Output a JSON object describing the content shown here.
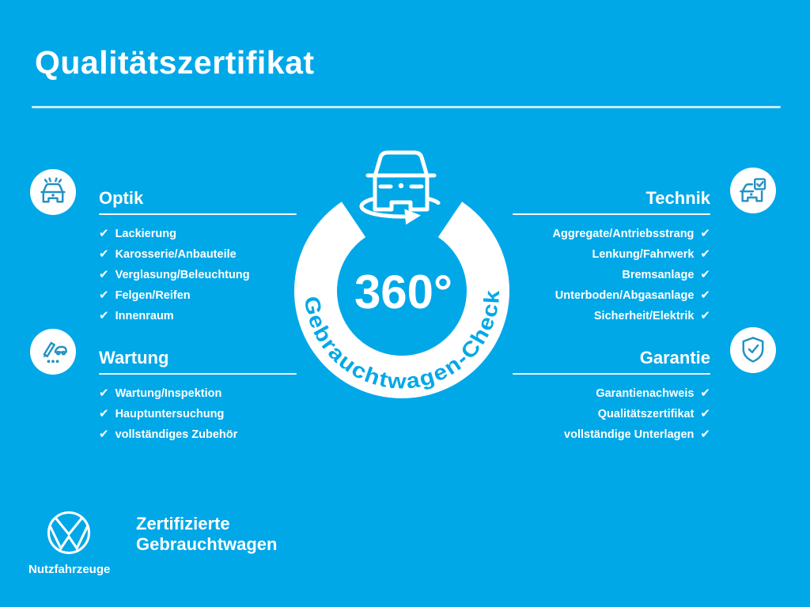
{
  "page": {
    "title": "Qualitätszertifikat"
  },
  "colors": {
    "background": "#00a8e8",
    "text": "#ffffff",
    "icon_stroke": "#2491c3"
  },
  "checkmark": "✔",
  "sections": [
    {
      "id": "optik",
      "title": "Optik",
      "icon": "car-shine-icon",
      "side": "left",
      "items": [
        "Lackierung",
        "Karosserie/Anbauteile",
        "Verglasung/Beleuchtung",
        "Felgen/Reifen",
        "Innenraum"
      ]
    },
    {
      "id": "wartung",
      "title": "Wartung",
      "icon": "pen-checklist-icon",
      "side": "left",
      "items": [
        "Wartung/Inspektion",
        "Hauptuntersuchung",
        "vollständiges Zubehör"
      ]
    },
    {
      "id": "technik",
      "title": "Technik",
      "icon": "car-checkbox-icon",
      "side": "right",
      "items": [
        "Aggregate/Antriebsstrang",
        "Lenkung/Fahrwerk",
        "Bremsanlage",
        "Unterboden/Abgasanlage",
        "Sicherheit/Elektrik"
      ]
    },
    {
      "id": "garantie",
      "title": "Garantie",
      "icon": "shield-check-icon",
      "side": "right",
      "items": [
        "Garantienachweis",
        "Qualitätszertifikat",
        "vollständige Unterlagen"
      ]
    }
  ],
  "center_badge": {
    "degree_label": "360°",
    "ring_label": "Gebrauchtwagen-Check",
    "icon": "van-rotate-icon"
  },
  "footer": {
    "logo": "vw-logo",
    "logo_caption": "Nutzfahrzeuge",
    "tagline_line1": "Zertifizierte",
    "tagline_line2": "Gebrauchtwagen"
  }
}
